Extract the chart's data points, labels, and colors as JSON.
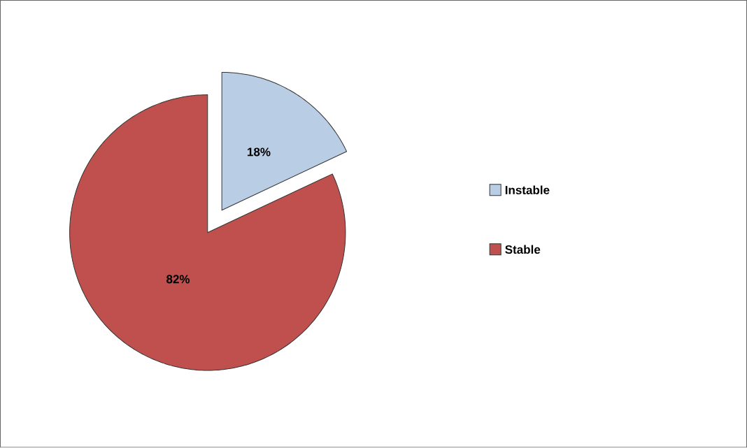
{
  "chart_data": {
    "type": "pie",
    "categories": [
      "Instable",
      "Stable"
    ],
    "values": [
      18,
      82
    ],
    "colors": [
      "#b9cde5",
      "#c0504d"
    ],
    "value_labels": [
      "18%",
      "82%"
    ],
    "legend": "right"
  }
}
